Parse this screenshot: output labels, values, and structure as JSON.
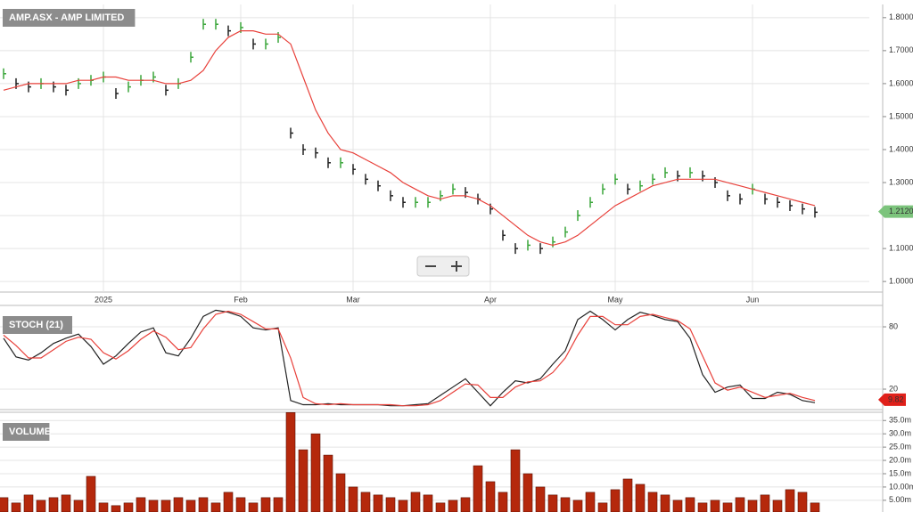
{
  "chart_data": [
    {
      "type": "price",
      "title": "AMP.ASX - AMP LIMITED",
      "categories": [
        null,
        null,
        null,
        null,
        null,
        null,
        null,
        null,
        "2025",
        null,
        null,
        null,
        null,
        null,
        null,
        null,
        null,
        null,
        null,
        "Feb",
        null,
        null,
        null,
        null,
        null,
        null,
        null,
        null,
        "Mar",
        null,
        null,
        null,
        null,
        null,
        null,
        null,
        null,
        null,
        null,
        "Apr",
        null,
        null,
        null,
        null,
        null,
        null,
        null,
        null,
        null,
        "May",
        null,
        null,
        null,
        null,
        null,
        null,
        null,
        null,
        null,
        null,
        "Jun",
        null,
        null,
        null,
        null,
        null
      ],
      "series": [
        {
          "color": "#222222",
          "values": [
            1.63,
            1.6,
            1.59,
            1.6,
            1.59,
            1.58,
            1.6,
            1.61,
            1.62,
            1.57,
            1.59,
            1.61,
            1.62,
            1.58,
            1.6,
            1.68,
            1.78,
            1.78,
            1.76,
            1.77,
            1.72,
            1.72,
            1.74,
            1.45,
            1.4,
            1.39,
            1.36,
            1.36,
            1.34,
            1.31,
            1.29,
            1.26,
            1.24,
            1.24,
            1.24,
            1.26,
            1.28,
            1.27,
            1.25,
            1.22,
            1.14,
            1.1,
            1.11,
            1.1,
            1.12,
            1.15,
            1.2,
            1.24,
            1.28,
            1.31,
            1.28,
            1.29,
            1.31,
            1.33,
            1.32,
            1.33,
            1.32,
            1.3,
            1.26,
            1.25,
            1.28,
            1.25,
            1.24,
            1.23,
            1.22,
            1.21
          ]
        },
        {
          "color": "#e8403a",
          "values": [
            1.58,
            1.59,
            1.6,
            1.6,
            1.6,
            1.6,
            1.61,
            1.61,
            1.62,
            1.62,
            1.61,
            1.61,
            1.61,
            1.6,
            1.6,
            1.61,
            1.64,
            1.7,
            1.74,
            1.76,
            1.76,
            1.75,
            1.75,
            1.72,
            1.62,
            1.52,
            1.45,
            1.4,
            1.39,
            1.37,
            1.35,
            1.33,
            1.3,
            1.28,
            1.26,
            1.25,
            1.26,
            1.26,
            1.25,
            1.23,
            1.2,
            1.17,
            1.14,
            1.12,
            1.11,
            1.12,
            1.14,
            1.17,
            1.2,
            1.23,
            1.25,
            1.27,
            1.29,
            1.3,
            1.31,
            1.31,
            1.31,
            1.31,
            1.3,
            1.29,
            1.28,
            1.27,
            1.26,
            1.25,
            1.24,
            1.23
          ]
        }
      ],
      "last_value": {
        "value": 1.212,
        "label": "1.2120"
      },
      "ylim": [
        0.968,
        1.84
      ],
      "yticks": [
        {
          "value": 1.0,
          "label": "1.0000"
        },
        {
          "value": 1.1,
          "label": "1.1000"
        },
        {
          "value": 1.2,
          "label": "1.2000"
        },
        {
          "value": 1.3,
          "label": "1.3000"
        },
        {
          "value": 1.4,
          "label": "1.4000"
        },
        {
          "value": 1.5,
          "label": "1.5000"
        },
        {
          "value": 1.6,
          "label": "1.6000"
        },
        {
          "value": 1.7,
          "label": "1.7000"
        },
        {
          "value": 1.8,
          "label": "1.8000"
        }
      ],
      "grid": true
    },
    {
      "type": "line",
      "title": "STOCH (21)",
      "series": [
        {
          "color": "#222222",
          "values": [
            69,
            51,
            48,
            55,
            64,
            69,
            73,
            61,
            44,
            52,
            64,
            75,
            79,
            55,
            52,
            69,
            90,
            96,
            94,
            90,
            79,
            77,
            79,
            9,
            5,
            5,
            6,
            5,
            5,
            5,
            5,
            4,
            4,
            5,
            6,
            14,
            22,
            30,
            17,
            4,
            17,
            28,
            26,
            30,
            44,
            57,
            87,
            95,
            87,
            77,
            87,
            94,
            91,
            87,
            85,
            69,
            34,
            17,
            22,
            24,
            11,
            11,
            17,
            15,
            9,
            7
          ]
        },
        {
          "color": "#e8403a",
          "values": [
            72,
            62,
            50,
            50,
            58,
            66,
            70,
            68,
            55,
            49,
            57,
            68,
            76,
            70,
            58,
            60,
            78,
            92,
            95,
            92,
            85,
            78,
            78,
            50,
            12,
            6,
            5,
            6,
            5,
            5,
            5,
            5,
            4,
            4,
            5,
            9,
            17,
            25,
            24,
            12,
            12,
            22,
            27,
            28,
            36,
            50,
            72,
            90,
            90,
            82,
            82,
            90,
            92,
            89,
            86,
            78,
            52,
            26,
            19,
            22,
            17,
            12,
            14,
            16,
            12,
            9
          ]
        }
      ],
      "last_value": 9.82,
      "ylim": [
        0.3,
        100.6
      ],
      "yticks": [
        20,
        80
      ],
      "grid": true
    },
    {
      "type": "bar",
      "title": "VOLUME",
      "color": "#b5280c",
      "values": [
        6,
        4,
        7,
        5,
        6,
        7,
        5,
        14,
        4,
        3,
        4,
        6,
        5,
        5,
        6,
        5,
        6,
        4,
        8,
        6,
        4,
        6,
        6,
        38,
        24,
        30,
        22,
        15,
        10,
        8,
        7,
        6,
        5,
        8,
        7,
        4,
        5,
        6,
        18,
        12,
        8,
        24,
        15,
        10,
        7,
        6,
        5,
        8,
        4,
        9,
        13,
        11,
        8,
        7,
        5,
        6,
        4,
        5,
        4,
        6,
        5,
        7,
        5,
        9,
        8,
        4
      ],
      "ylim": [
        0.6,
        38.1
      ],
      "yticks": [
        {
          "value": 5,
          "label": "5.00m"
        },
        {
          "value": 10,
          "label": "10.00m"
        },
        {
          "value": 15,
          "label": "15.0m"
        },
        {
          "value": 20,
          "label": "20.0m"
        },
        {
          "value": 25,
          "label": "25.0m"
        },
        {
          "value": 30,
          "label": "30.0m"
        },
        {
          "value": 35,
          "label": "35.0m"
        }
      ],
      "grid": true
    }
  ]
}
